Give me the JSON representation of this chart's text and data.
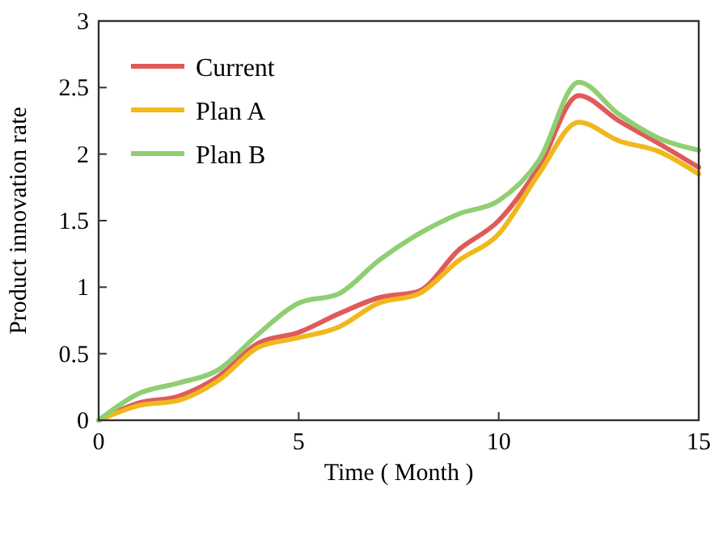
{
  "chart_data": {
    "type": "line",
    "xlabel": "Time ( Month )",
    "ylabel": "Product innovation rate",
    "x": [
      0,
      1,
      2,
      3,
      4,
      5,
      6,
      7,
      8,
      9,
      10,
      11,
      12,
      13,
      14,
      15
    ],
    "series": [
      {
        "name": "Current",
        "color": "#e05a5a",
        "values": [
          0,
          0.13,
          0.18,
          0.33,
          0.58,
          0.66,
          0.8,
          0.92,
          0.97,
          1.28,
          1.5,
          1.9,
          2.44,
          2.25,
          2.08,
          1.9
        ]
      },
      {
        "name": "Plan A",
        "color": "#f0b81c",
        "values": [
          0,
          0.11,
          0.15,
          0.3,
          0.55,
          0.62,
          0.7,
          0.88,
          0.95,
          1.2,
          1.4,
          1.85,
          2.24,
          2.1,
          2.02,
          1.85
        ]
      },
      {
        "name": "Plan B",
        "color": "#8fcf72",
        "values": [
          0,
          0.2,
          0.28,
          0.38,
          0.65,
          0.88,
          0.95,
          1.2,
          1.4,
          1.55,
          1.65,
          1.95,
          2.54,
          2.3,
          2.12,
          2.03
        ]
      }
    ],
    "xlim": [
      0,
      15
    ],
    "xticks": [
      0,
      5,
      10,
      15
    ],
    "ylim": [
      0,
      3
    ],
    "yticks": [
      0,
      0.5,
      1,
      1.5,
      2,
      2.5,
      3
    ],
    "grid": false,
    "legend": "top left",
    "marker": "none",
    "line_style": "solid"
  }
}
